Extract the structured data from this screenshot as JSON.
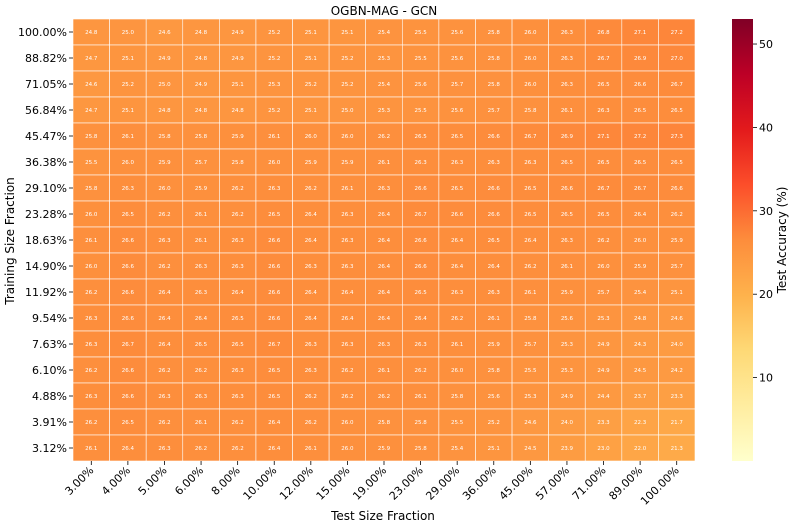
{
  "chart_data": {
    "type": "heatmap",
    "title": "OGBN-MAG - GCN",
    "xlabel": "Test Size Fraction",
    "ylabel": "Training Size Fraction",
    "colorbar_label": "Test Accuracy (%)",
    "colormap": "YlOrRd",
    "vmin": 0,
    "vmax": 53,
    "colorbar_ticks": [
      "10",
      "20",
      "30",
      "40",
      "50"
    ],
    "colorbar_tick_values": [
      10,
      20,
      30,
      40,
      50
    ],
    "x_categories": [
      "3.00%",
      "4.00%",
      "5.00%",
      "6.00%",
      "8.00%",
      "10.00%",
      "12.00%",
      "15.00%",
      "19.00%",
      "23.00%",
      "29.00%",
      "36.00%",
      "45.00%",
      "57.00%",
      "71.00%",
      "89.00%",
      "100.00%"
    ],
    "y_categories": [
      "100.00%",
      "88.82%",
      "71.05%",
      "56.84%",
      "45.47%",
      "36.38%",
      "29.10%",
      "23.28%",
      "18.63%",
      "14.90%",
      "11.92%",
      "9.54%",
      "7.63%",
      "6.10%",
      "4.88%",
      "3.91%",
      "3.12%"
    ],
    "values": [
      [
        "24.8",
        "25.0",
        "24.6",
        "24.8",
        "24.9",
        "25.2",
        "25.1",
        "25.1",
        "25.4",
        "25.5",
        "25.6",
        "25.8",
        "26.0",
        "26.3",
        "26.8",
        "27.1",
        "27.2"
      ],
      [
        "24.7",
        "25.1",
        "24.9",
        "24.8",
        "24.9",
        "25.2",
        "25.1",
        "25.2",
        "25.3",
        "25.5",
        "25.6",
        "25.8",
        "26.0",
        "26.3",
        "26.7",
        "26.9",
        "27.0"
      ],
      [
        "24.6",
        "25.2",
        "25.0",
        "24.9",
        "25.1",
        "25.3",
        "25.2",
        "25.2",
        "25.4",
        "25.6",
        "25.7",
        "25.8",
        "26.0",
        "26.3",
        "26.5",
        "26.6",
        "26.7"
      ],
      [
        "24.7",
        "25.1",
        "24.8",
        "24.8",
        "24.8",
        "25.2",
        "25.1",
        "25.0",
        "25.3",
        "25.5",
        "25.6",
        "25.7",
        "25.8",
        "26.1",
        "26.3",
        "26.5",
        "26.5"
      ],
      [
        "25.8",
        "26.1",
        "25.8",
        "25.8",
        "25.9",
        "26.1",
        "26.0",
        "26.0",
        "26.2",
        "26.5",
        "26.5",
        "26.6",
        "26.7",
        "26.9",
        "27.1",
        "27.2",
        "27.3"
      ],
      [
        "25.5",
        "26.0",
        "25.9",
        "25.7",
        "25.8",
        "26.0",
        "25.9",
        "25.9",
        "26.1",
        "26.3",
        "26.3",
        "26.3",
        "26.3",
        "26.5",
        "26.5",
        "26.5",
        "26.5"
      ],
      [
        "25.8",
        "26.3",
        "26.0",
        "25.9",
        "26.2",
        "26.3",
        "26.2",
        "26.1",
        "26.3",
        "26.6",
        "26.5",
        "26.6",
        "26.5",
        "26.6",
        "26.7",
        "26.7",
        "26.6"
      ],
      [
        "26.0",
        "26.5",
        "26.2",
        "26.1",
        "26.2",
        "26.5",
        "26.4",
        "26.3",
        "26.4",
        "26.7",
        "26.6",
        "26.6",
        "26.5",
        "26.5",
        "26.5",
        "26.4",
        "26.2"
      ],
      [
        "26.1",
        "26.6",
        "26.3",
        "26.1",
        "26.3",
        "26.6",
        "26.4",
        "26.3",
        "26.4",
        "26.6",
        "26.4",
        "26.5",
        "26.4",
        "26.3",
        "26.2",
        "26.0",
        "25.9"
      ],
      [
        "26.0",
        "26.6",
        "26.2",
        "26.3",
        "26.3",
        "26.6",
        "26.3",
        "26.3",
        "26.4",
        "26.6",
        "26.4",
        "26.4",
        "26.2",
        "26.1",
        "26.0",
        "25.9",
        "25.7"
      ],
      [
        "26.2",
        "26.6",
        "26.4",
        "26.3",
        "26.4",
        "26.6",
        "26.4",
        "26.4",
        "26.4",
        "26.5",
        "26.3",
        "26.3",
        "26.1",
        "25.9",
        "25.7",
        "25.4",
        "25.1"
      ],
      [
        "26.3",
        "26.6",
        "26.4",
        "26.4",
        "26.5",
        "26.6",
        "26.4",
        "26.4",
        "26.4",
        "26.4",
        "26.2",
        "26.1",
        "25.8",
        "25.6",
        "25.3",
        "24.8",
        "24.6"
      ],
      [
        "26.3",
        "26.7",
        "26.4",
        "26.5",
        "26.5",
        "26.7",
        "26.3",
        "26.3",
        "26.3",
        "26.3",
        "26.1",
        "25.9",
        "25.7",
        "25.3",
        "24.9",
        "24.3",
        "24.0"
      ],
      [
        "26.2",
        "26.6",
        "26.2",
        "26.2",
        "26.3",
        "26.5",
        "26.3",
        "26.2",
        "26.1",
        "26.2",
        "26.0",
        "25.8",
        "25.5",
        "25.3",
        "24.9",
        "24.5",
        "24.2"
      ],
      [
        "26.3",
        "26.6",
        "26.3",
        "26.3",
        "26.3",
        "26.5",
        "26.2",
        "26.2",
        "26.2",
        "26.1",
        "25.8",
        "25.6",
        "25.3",
        "24.9",
        "24.4",
        "23.7",
        "23.3"
      ],
      [
        "26.2",
        "26.5",
        "26.2",
        "26.1",
        "26.2",
        "26.4",
        "26.2",
        "26.0",
        "25.8",
        "25.8",
        "25.5",
        "25.2",
        "24.6",
        "24.0",
        "23.3",
        "22.3",
        "21.7"
      ],
      [
        "26.1",
        "26.4",
        "26.3",
        "26.2",
        "26.2",
        "26.4",
        "26.1",
        "26.0",
        "25.9",
        "25.8",
        "25.4",
        "25.1",
        "24.5",
        "23.9",
        "23.0",
        "22.0",
        "21.3"
      ]
    ]
  }
}
